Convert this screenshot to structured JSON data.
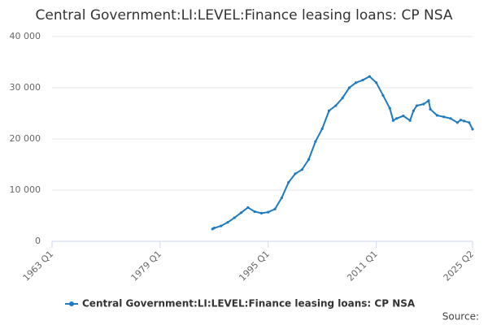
{
  "chart_data": {
    "type": "line",
    "title": "Central Government:LI:LEVEL:Finance leasing loans: CP NSA",
    "source_label": "Source:",
    "series": [
      {
        "name": "Central Government:LI:LEVEL:Finance leasing loans: CP NSA",
        "color": "#1f7bbf",
        "x": [
          1986.75,
          1987,
          1988,
          1989,
          1990,
          1991,
          1992,
          1993,
          1994,
          1995,
          1996,
          1997,
          1998,
          1999,
          2000,
          2001,
          2002,
          2003,
          2004,
          2005,
          2006,
          2007,
          2008,
          2009,
          2010,
          2011,
          2012,
          2013,
          2013.5,
          2014,
          2015,
          2016,
          2016.5,
          2017,
          2018,
          2018.75,
          2019,
          2020,
          2021,
          2022,
          2023,
          2023.5,
          2024,
          2024.75,
          2025.25
        ],
        "values": [
          2400,
          2600,
          3000,
          3700,
          4600,
          5600,
          6600,
          5800,
          5500,
          5700,
          6300,
          8500,
          11500,
          13200,
          14000,
          16000,
          19500,
          22000,
          25500,
          26500,
          28000,
          30000,
          31000,
          31500,
          32200,
          31000,
          28500,
          26000,
          23600,
          24000,
          24500,
          23600,
          25500,
          26500,
          26800,
          27500,
          25800,
          24600,
          24300,
          24000,
          23200,
          23700,
          23500,
          23200,
          21900
        ]
      }
    ],
    "xlim": [
      1963,
      2025.25
    ],
    "xticks": [
      {
        "value": 1963,
        "label": "1963 Q1"
      },
      {
        "value": 1979,
        "label": "1979 Q1"
      },
      {
        "value": 1995,
        "label": "1995 Q1"
      },
      {
        "value": 2011,
        "label": "2011 Q1"
      },
      {
        "value": 2025.25,
        "label": "2025 Q2"
      }
    ],
    "ylim": [
      0,
      40000
    ],
    "yticks": [
      0,
      {
        "value": 10000,
        "label": "10 000"
      },
      {
        "value": 20000,
        "label": "20 000"
      },
      {
        "value": 30000,
        "label": "30 000"
      },
      {
        "value": 40000,
        "label": "40 000"
      }
    ],
    "grid": true
  }
}
